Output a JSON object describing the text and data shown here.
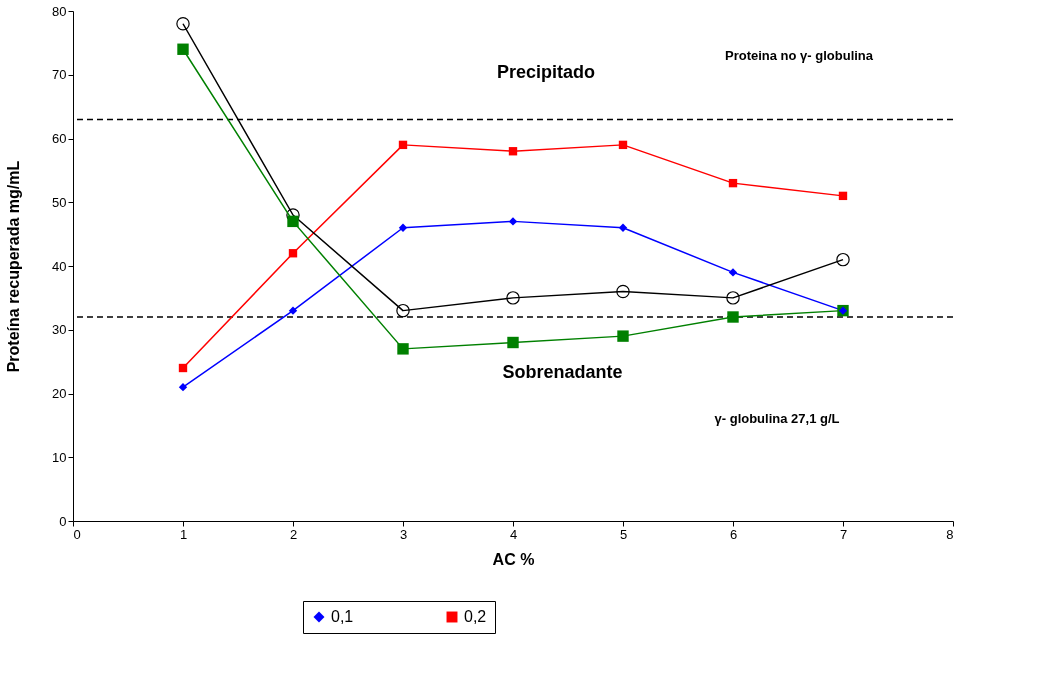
{
  "chart_data": {
    "type": "line",
    "xlabel": "AC %",
    "ylabel": "Proteína recuperada mg/mL",
    "x": [
      1,
      2,
      3,
      4,
      5,
      6,
      7
    ],
    "series": [
      {
        "name": "0,1",
        "color": "#0000ff",
        "marker": "diamond",
        "values": [
          21,
          33,
          46,
          47,
          46,
          39,
          33
        ]
      },
      {
        "name": "0,2",
        "color": "#ff0000",
        "marker": "square",
        "values": [
          24,
          42,
          59,
          58,
          59,
          53,
          51
        ]
      },
      {
        "color": "#000000",
        "marker": "circle",
        "values": [
          78,
          48,
          33,
          35,
          36,
          35,
          41
        ]
      },
      {
        "color": "#008000",
        "marker": "square",
        "values": [
          74,
          47,
          27,
          28,
          29,
          32,
          33
        ]
      }
    ],
    "xlim": [
      0,
      8
    ],
    "xticks": [
      0,
      1,
      2,
      3,
      4,
      5,
      6,
      7,
      8
    ],
    "ylim": [
      0,
      80
    ],
    "yticks": [
      0,
      10,
      20,
      30,
      40,
      50,
      60,
      70,
      80
    ],
    "ref_lines": [
      {
        "axis": "y",
        "value": 63,
        "color": "#000000",
        "line_style": "dashed"
      },
      {
        "axis": "y",
        "value": 32,
        "color": "#000000",
        "line_style": "dashed"
      }
    ],
    "annotations": [
      "Precipitado",
      "Sobrenadante",
      "Proteina no γ- globulina",
      "γ- globulina 27,1 g/L"
    ],
    "legend": "bottom",
    "grid": false
  }
}
